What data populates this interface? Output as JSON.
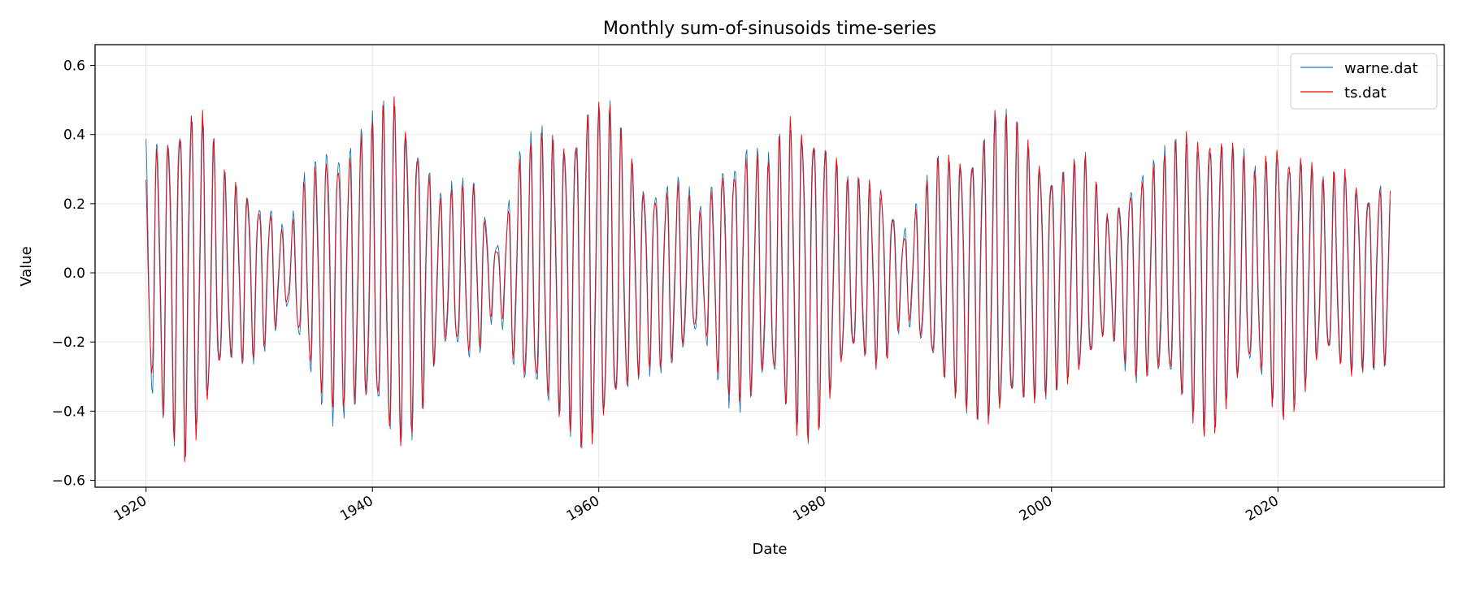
{
  "chart_data": {
    "type": "line",
    "title": "Monthly sum-of-sinusoids time-series",
    "xlabel": "Date",
    "ylabel": "Value",
    "x_range": [
      "1920-01",
      "2029-12"
    ],
    "xlim": [
      1915.5,
      2034.7
    ],
    "ylim": [
      -0.62,
      0.66
    ],
    "x_ticks": [
      {
        "value": 1920,
        "label": "1920"
      },
      {
        "value": 1940,
        "label": "1940"
      },
      {
        "value": 1960,
        "label": "1960"
      },
      {
        "value": 1980,
        "label": "1980"
      },
      {
        "value": 2000,
        "label": "2000"
      },
      {
        "value": 2020,
        "label": "2020"
      }
    ],
    "y_ticks": [
      {
        "value": 0.6,
        "label": "0.6"
      },
      {
        "value": 0.4,
        "label": "0.4"
      },
      {
        "value": 0.2,
        "label": "0.2"
      },
      {
        "value": 0.0,
        "label": "0.0"
      },
      {
        "value": -0.2,
        "label": "−0.2"
      },
      {
        "value": -0.4,
        "label": "−0.4"
      },
      {
        "value": -0.6,
        "label": "−0.6"
      }
    ],
    "grid": true,
    "legend_position": "top-right",
    "series": [
      {
        "name": "warne.dat",
        "color": "#1f77b4",
        "envelope_nodes": {
          "x": [
            1920,
            1921,
            1923.5,
            1925,
            1927,
            1929,
            1931,
            1932.5,
            1934,
            1936,
            1938,
            1940,
            1942,
            1944,
            1946,
            1949,
            1951,
            1953,
            1955,
            1957,
            1959,
            1961,
            1964,
            1967,
            1969,
            1971,
            1973,
            1975,
            1977,
            1979,
            1982,
            1985,
            1987,
            1990,
            1993,
            1995,
            1997,
            2000,
            2003,
            2005,
            2007,
            2010,
            2012,
            2014,
            2016,
            2018,
            2020,
            2022,
            2024,
            2026,
            2028,
            2030
          ],
          "amplitude": [
            0.4,
            0.43,
            0.55,
            0.48,
            0.3,
            0.28,
            0.22,
            0.12,
            0.3,
            0.45,
            0.43,
            0.47,
            0.56,
            0.46,
            0.25,
            0.3,
            0.1,
            0.38,
            0.44,
            0.45,
            0.55,
            0.5,
            0.3,
            0.3,
            0.2,
            0.38,
            0.43,
            0.35,
            0.48,
            0.5,
            0.28,
            0.28,
            0.15,
            0.35,
            0.42,
            0.5,
            0.45,
            0.35,
            0.35,
            0.18,
            0.32,
            0.37,
            0.43,
            0.48,
            0.4,
            0.32,
            0.43,
            0.38,
            0.28,
            0.32,
            0.28,
            0.32
          ]
        }
      },
      {
        "name": "ts.dat",
        "color": "#ff0000",
        "envelope_nodes": {
          "x": [
            1920,
            1921,
            1923.5,
            1925,
            1927,
            1929,
            1931,
            1932.5,
            1934,
            1936,
            1938,
            1940,
            1942,
            1944,
            1946,
            1949,
            1951,
            1953,
            1955,
            1957,
            1959,
            1961,
            1964,
            1967,
            1969,
            1971,
            1973,
            1975,
            1977,
            1979,
            1982,
            1985,
            1987,
            1990,
            1993,
            1995,
            1997,
            2000,
            2003,
            2005,
            2007,
            2010,
            2012,
            2014,
            2016,
            2018,
            2020,
            2022,
            2024,
            2026,
            2028,
            2030
          ],
          "amplitude": [
            0.3,
            0.4,
            0.57,
            0.5,
            0.3,
            0.27,
            0.2,
            0.1,
            0.28,
            0.4,
            0.4,
            0.45,
            0.56,
            0.45,
            0.23,
            0.28,
            0.08,
            0.35,
            0.42,
            0.45,
            0.55,
            0.5,
            0.28,
            0.28,
            0.18,
            0.35,
            0.4,
            0.33,
            0.5,
            0.5,
            0.28,
            0.3,
            0.12,
            0.35,
            0.42,
            0.5,
            0.45,
            0.35,
            0.35,
            0.18,
            0.3,
            0.35,
            0.45,
            0.5,
            0.4,
            0.3,
            0.45,
            0.4,
            0.28,
            0.33,
            0.28,
            0.3
          ]
        }
      }
    ]
  }
}
